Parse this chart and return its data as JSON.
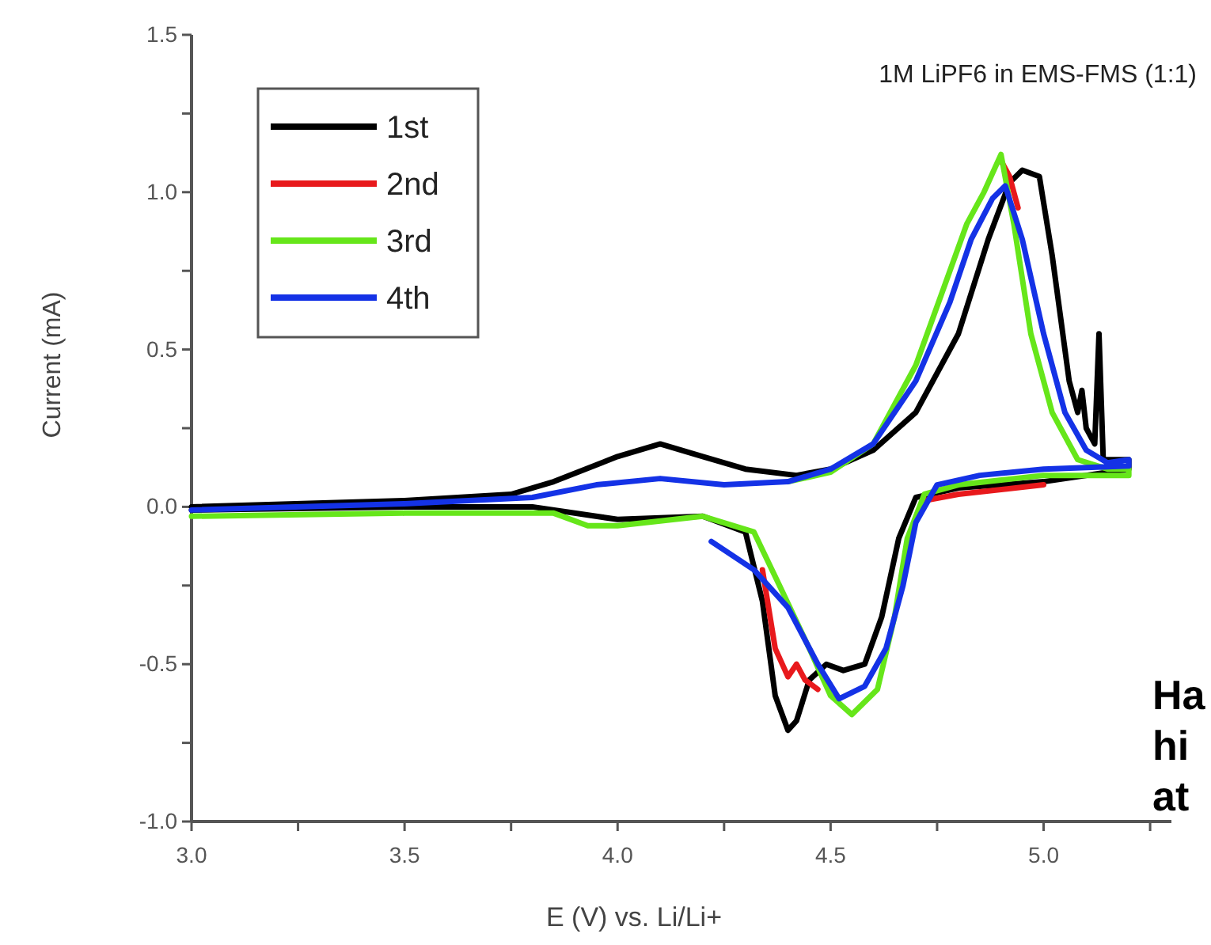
{
  "chart_data": {
    "type": "line",
    "xlabel": "E (V) vs. Li/Li+",
    "ylabel": "Current (mA)",
    "annotations": [
      "1M LiPF6 in EMS-FMS (1:1)",
      "Ha",
      "hi",
      "at"
    ],
    "xlim": [
      3.0,
      5.3
    ],
    "ylim": [
      -1.0,
      1.5
    ],
    "xticks": [
      {
        "value": 3.0,
        "label": "3.0"
      },
      {
        "value": 3.25,
        "label": null
      },
      {
        "value": 3.5,
        "label": "3.5"
      },
      {
        "value": 3.75,
        "label": null
      },
      {
        "value": 4.0,
        "label": "4.0"
      },
      {
        "value": 4.25,
        "label": null
      },
      {
        "value": 4.5,
        "label": "4.5"
      },
      {
        "value": 4.75,
        "label": null
      },
      {
        "value": 5.0,
        "label": "5.0"
      },
      {
        "value": 5.25,
        "label": null
      }
    ],
    "yticks": [
      {
        "value": -1.0,
        "label": "-1.0"
      },
      {
        "value": -0.75,
        "label": null
      },
      {
        "value": -0.5,
        "label": "-0.5"
      },
      {
        "value": -0.25,
        "label": null
      },
      {
        "value": 0,
        "label": "0.0"
      },
      {
        "value": 0.25,
        "label": null
      },
      {
        "value": 0.5,
        "label": "0.5"
      },
      {
        "value": 0.75,
        "label": null
      },
      {
        "value": 1.0,
        "label": "1.0"
      },
      {
        "value": 1.25,
        "label": null
      },
      {
        "value": 1.5,
        "label": "1.5"
      }
    ],
    "legend": "top left",
    "grid": false,
    "marker": "none",
    "line_style": "solid",
    "series": [
      {
        "name": "1st",
        "color": "#000000",
        "x": [
          3.0,
          3.5,
          3.75,
          3.85,
          4.0,
          4.1,
          4.2,
          4.3,
          4.42,
          4.5,
          4.6,
          4.7,
          4.8,
          4.87,
          4.92,
          4.95,
          4.99,
          5.02,
          5.04,
          5.06,
          5.08,
          5.09,
          5.1,
          5.12,
          5.13,
          5.14,
          5.2,
          5.2,
          5.0,
          4.8,
          4.7,
          4.66,
          4.62,
          4.58,
          4.53,
          4.49,
          4.45,
          4.42,
          4.4,
          4.37,
          4.34,
          4.3,
          4.2,
          4.0,
          3.8,
          3.5,
          3.0
        ],
        "values": [
          0.0,
          0.02,
          0.04,
          0.08,
          0.16,
          0.2,
          0.16,
          0.12,
          0.1,
          0.12,
          0.18,
          0.3,
          0.55,
          0.85,
          1.03,
          1.07,
          1.05,
          0.8,
          0.6,
          0.4,
          0.3,
          0.37,
          0.25,
          0.2,
          0.55,
          0.15,
          0.15,
          0.12,
          0.08,
          0.06,
          0.03,
          -0.1,
          -0.35,
          -0.5,
          -0.52,
          -0.5,
          -0.55,
          -0.68,
          -0.71,
          -0.6,
          -0.3,
          -0.08,
          -0.03,
          -0.04,
          0.0,
          0.0,
          -0.01
        ]
      },
      {
        "name": "2nd",
        "color": "#e8191c",
        "x": [
          4.9,
          4.92,
          4.94
        ],
        "values": [
          1.1,
          1.05,
          0.95
        ]
      },
      {
        "color": "#e8191c",
        "x": [
          5.0,
          4.8,
          4.72
        ],
        "values": [
          0.07,
          0.04,
          0.02
        ]
      },
      {
        "color": "#e8191c",
        "x": [
          4.47,
          4.44,
          4.42,
          4.4,
          4.37,
          4.34
        ],
        "values": [
          -0.58,
          -0.55,
          -0.5,
          -0.54,
          -0.45,
          -0.2
        ]
      },
      {
        "name": "3rd",
        "color": "#66e61a",
        "x": [
          4.4,
          4.5,
          4.6,
          4.7,
          4.78,
          4.82,
          4.86,
          4.9,
          4.93,
          4.97,
          5.02,
          5.08,
          5.15,
          5.2,
          5.2,
          5.0,
          4.8,
          4.72,
          4.68,
          4.65,
          4.61,
          4.55,
          4.5,
          4.45,
          4.38,
          4.32,
          4.2,
          4.0,
          3.93,
          3.85,
          3.5,
          3.0
        ],
        "values": [
          0.08,
          0.11,
          0.2,
          0.45,
          0.75,
          0.9,
          1.0,
          1.12,
          0.9,
          0.55,
          0.3,
          0.15,
          0.12,
          0.12,
          0.1,
          0.1,
          0.07,
          0.04,
          -0.1,
          -0.35,
          -0.58,
          -0.66,
          -0.6,
          -0.45,
          -0.25,
          -0.08,
          -0.03,
          -0.06,
          -0.06,
          -0.02,
          -0.02,
          -0.03
        ]
      },
      {
        "name": "4th",
        "color": "#1432e6",
        "x": [
          3.0,
          3.5,
          3.8,
          3.95,
          4.1,
          4.25,
          4.4,
          4.5,
          4.6,
          4.7,
          4.78,
          4.83,
          4.88,
          4.91,
          4.95,
          5.0,
          5.05,
          5.1,
          5.15,
          5.2,
          5.2,
          5.0,
          4.85,
          4.75,
          4.7,
          4.67,
          4.63,
          4.58,
          4.52,
          4.47,
          4.4,
          4.32,
          4.22
        ],
        "values": [
          -0.01,
          0.01,
          0.03,
          0.07,
          0.09,
          0.07,
          0.08,
          0.12,
          0.2,
          0.4,
          0.65,
          0.85,
          0.98,
          1.02,
          0.85,
          0.55,
          0.3,
          0.18,
          0.14,
          0.15,
          0.13,
          0.12,
          0.1,
          0.07,
          -0.05,
          -0.25,
          -0.45,
          -0.57,
          -0.61,
          -0.5,
          -0.32,
          -0.2,
          -0.11
        ]
      }
    ]
  }
}
